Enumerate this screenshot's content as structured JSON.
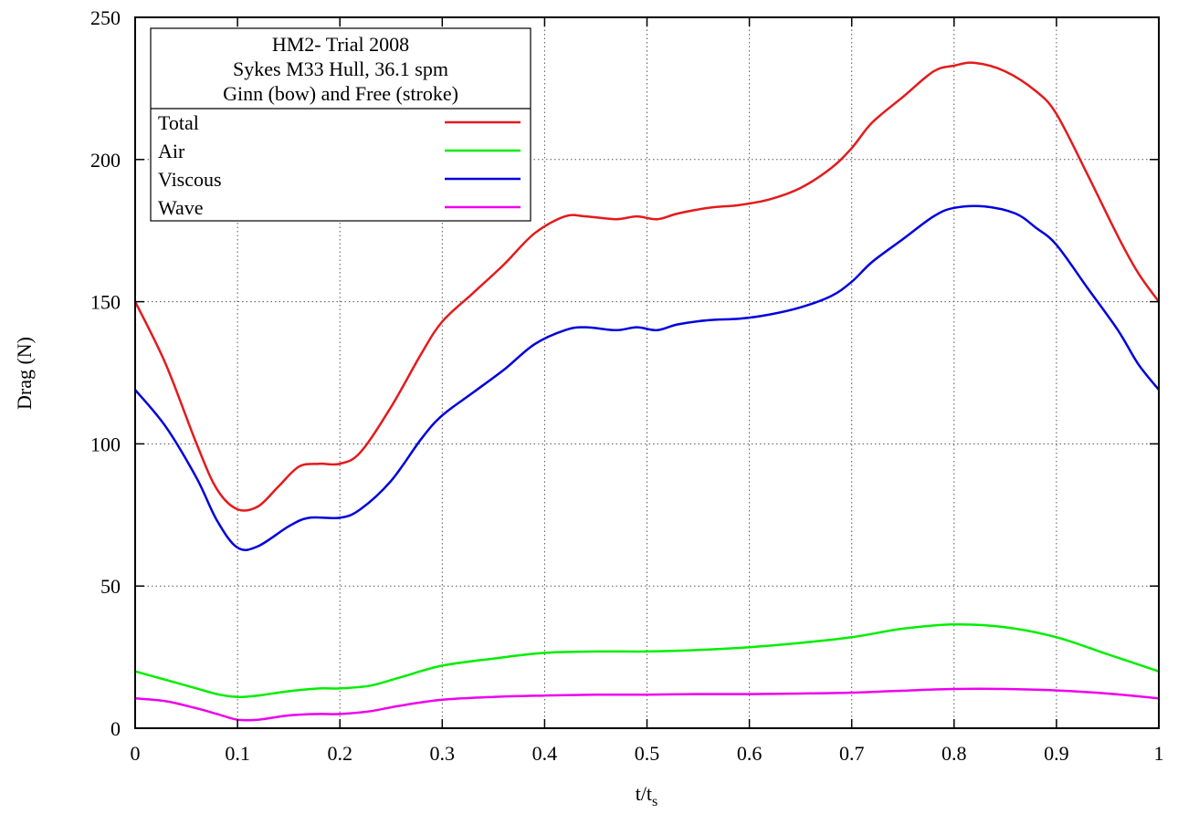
{
  "chart_data": {
    "type": "line",
    "title_lines": [
      "HM2- Trial 2008",
      "Sykes M33 Hull, 36.1 spm",
      "Ginn (bow) and Free (stroke)"
    ],
    "xlabel": "t/t",
    "xlabel_sub": "s",
    "ylabel": "Drag (N)",
    "xlim": [
      0,
      1
    ],
    "ylim": [
      0,
      250
    ],
    "xticks": [
      "0",
      "0.1",
      "0.2",
      "0.3",
      "0.4",
      "0.5",
      "0.6",
      "0.7",
      "0.8",
      "0.9",
      "1"
    ],
    "xtick_values": [
      0,
      0.1,
      0.2,
      0.3,
      0.4,
      0.5,
      0.6,
      0.7,
      0.8,
      0.9,
      1
    ],
    "yticks": [
      "0",
      "50",
      "100",
      "150",
      "200",
      "250"
    ],
    "ytick_values": [
      0,
      50,
      100,
      150,
      200,
      250
    ],
    "grid": true,
    "legend_position": "top-left",
    "series": [
      {
        "name": "Total",
        "color": "#e41a1c",
        "points": [
          [
            0,
            150
          ],
          [
            0.03,
            128
          ],
          [
            0.06,
            100
          ],
          [
            0.08,
            84
          ],
          [
            0.1,
            77
          ],
          [
            0.12,
            78
          ],
          [
            0.14,
            85
          ],
          [
            0.16,
            92
          ],
          [
            0.18,
            93
          ],
          [
            0.2,
            93
          ],
          [
            0.22,
            97
          ],
          [
            0.25,
            113
          ],
          [
            0.28,
            132
          ],
          [
            0.3,
            143
          ],
          [
            0.33,
            153
          ],
          [
            0.36,
            163
          ],
          [
            0.39,
            174
          ],
          [
            0.42,
            180
          ],
          [
            0.44,
            180
          ],
          [
            0.47,
            179
          ],
          [
            0.49,
            180
          ],
          [
            0.51,
            179
          ],
          [
            0.53,
            181
          ],
          [
            0.56,
            183
          ],
          [
            0.59,
            184
          ],
          [
            0.62,
            186
          ],
          [
            0.65,
            190
          ],
          [
            0.68,
            197
          ],
          [
            0.7,
            204
          ],
          [
            0.72,
            213
          ],
          [
            0.75,
            222
          ],
          [
            0.78,
            231
          ],
          [
            0.8,
            233
          ],
          [
            0.82,
            234
          ],
          [
            0.85,
            231
          ],
          [
            0.88,
            224
          ],
          [
            0.9,
            216
          ],
          [
            0.93,
            195
          ],
          [
            0.96,
            173
          ],
          [
            0.98,
            160
          ],
          [
            1.0,
            150
          ]
        ]
      },
      {
        "name": "Air",
        "color": "#00ee00",
        "points": [
          [
            0,
            20
          ],
          [
            0.03,
            17
          ],
          [
            0.06,
            14
          ],
          [
            0.08,
            12
          ],
          [
            0.1,
            11
          ],
          [
            0.12,
            11.5
          ],
          [
            0.15,
            13
          ],
          [
            0.18,
            14
          ],
          [
            0.2,
            14
          ],
          [
            0.23,
            15
          ],
          [
            0.26,
            18
          ],
          [
            0.3,
            22
          ],
          [
            0.35,
            24.5
          ],
          [
            0.4,
            26.5
          ],
          [
            0.45,
            27
          ],
          [
            0.5,
            27
          ],
          [
            0.55,
            27.5
          ],
          [
            0.6,
            28.5
          ],
          [
            0.65,
            30
          ],
          [
            0.7,
            32
          ],
          [
            0.75,
            35
          ],
          [
            0.8,
            36.5
          ],
          [
            0.85,
            35.5
          ],
          [
            0.9,
            32
          ],
          [
            0.95,
            26
          ],
          [
            1.0,
            20
          ]
        ]
      },
      {
        "name": "Viscous",
        "color": "#0000dd",
        "points": [
          [
            0,
            119
          ],
          [
            0.03,
            106
          ],
          [
            0.06,
            88
          ],
          [
            0.08,
            73
          ],
          [
            0.1,
            63.5
          ],
          [
            0.12,
            64
          ],
          [
            0.15,
            71
          ],
          [
            0.17,
            74
          ],
          [
            0.2,
            74
          ],
          [
            0.22,
            77
          ],
          [
            0.25,
            87
          ],
          [
            0.28,
            102
          ],
          [
            0.3,
            110
          ],
          [
            0.33,
            118
          ],
          [
            0.36,
            126
          ],
          [
            0.39,
            135
          ],
          [
            0.42,
            140
          ],
          [
            0.44,
            141
          ],
          [
            0.47,
            140
          ],
          [
            0.49,
            141
          ],
          [
            0.51,
            140
          ],
          [
            0.53,
            142
          ],
          [
            0.56,
            143.5
          ],
          [
            0.59,
            144
          ],
          [
            0.62,
            145.5
          ],
          [
            0.65,
            148
          ],
          [
            0.68,
            152
          ],
          [
            0.7,
            157
          ],
          [
            0.72,
            164
          ],
          [
            0.75,
            172
          ],
          [
            0.78,
            180
          ],
          [
            0.8,
            183
          ],
          [
            0.83,
            183.5
          ],
          [
            0.86,
            181
          ],
          [
            0.88,
            176
          ],
          [
            0.9,
            170
          ],
          [
            0.93,
            155
          ],
          [
            0.96,
            140
          ],
          [
            0.98,
            128
          ],
          [
            1.0,
            119
          ]
        ]
      },
      {
        "name": "Wave",
        "color": "#ee00ee",
        "points": [
          [
            0,
            10.5
          ],
          [
            0.03,
            9.5
          ],
          [
            0.06,
            7
          ],
          [
            0.08,
            5
          ],
          [
            0.1,
            3
          ],
          [
            0.12,
            3
          ],
          [
            0.15,
            4.5
          ],
          [
            0.18,
            5
          ],
          [
            0.2,
            5
          ],
          [
            0.23,
            6
          ],
          [
            0.26,
            8
          ],
          [
            0.3,
            10
          ],
          [
            0.35,
            11
          ],
          [
            0.4,
            11.5
          ],
          [
            0.45,
            11.8
          ],
          [
            0.5,
            11.8
          ],
          [
            0.55,
            12
          ],
          [
            0.6,
            12
          ],
          [
            0.65,
            12.2
          ],
          [
            0.7,
            12.5
          ],
          [
            0.75,
            13.2
          ],
          [
            0.8,
            13.8
          ],
          [
            0.85,
            13.8
          ],
          [
            0.9,
            13.3
          ],
          [
            0.95,
            12.2
          ],
          [
            1.0,
            10.5
          ]
        ]
      }
    ]
  }
}
